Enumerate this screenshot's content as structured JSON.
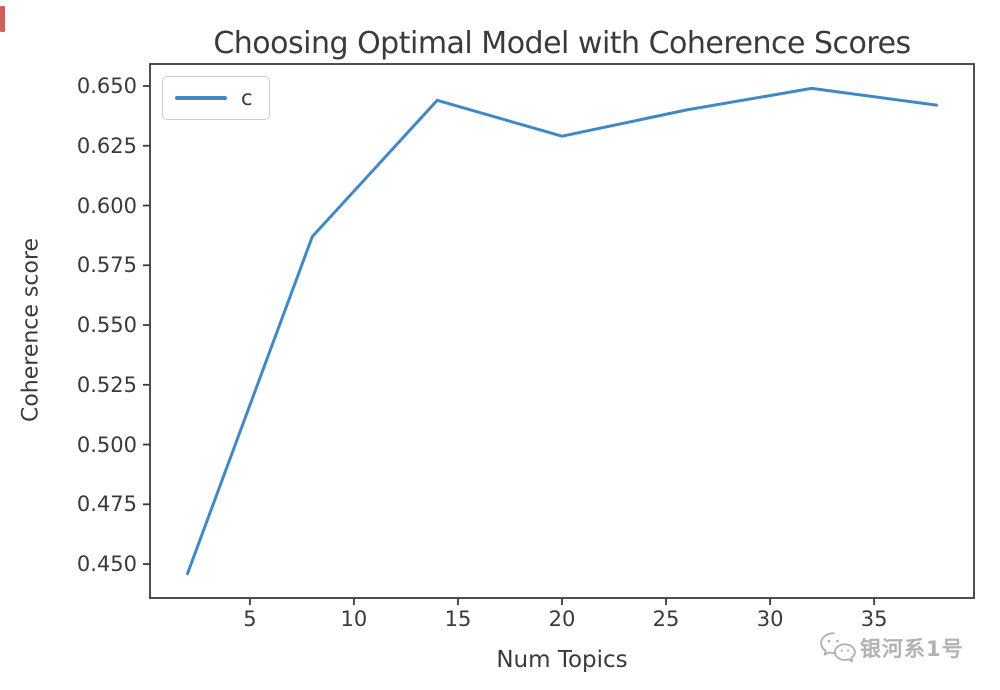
{
  "page": {
    "background": "#ffffff"
  },
  "artifact": {
    "description": "small red mark at top-left edge",
    "color": "#c4392e"
  },
  "watermark": {
    "icon": "wechat-chat-bubbles-icon",
    "text": "银河系1号",
    "color": "#b2b2b2"
  },
  "chart_data": {
    "type": "line",
    "title": "Choosing Optimal Model with Coherence Scores",
    "xlabel": "Num Topics",
    "ylabel": "Coherence score",
    "x": [
      2,
      8,
      14,
      20,
      26,
      32,
      38
    ],
    "series": [
      {
        "name": "c",
        "color": "#4288c4",
        "values": [
          0.446,
          0.587,
          0.644,
          0.629,
          0.64,
          0.649,
          0.642
        ]
      }
    ],
    "xlim": [
      0.2,
      39.8
    ],
    "ylim": [
      0.4358,
      0.6592
    ],
    "xticks": [
      5,
      10,
      15,
      20,
      25,
      30,
      35
    ],
    "xtick_labels": [
      "5",
      "10",
      "15",
      "20",
      "25",
      "30",
      "35"
    ],
    "yticks": [
      0.45,
      0.475,
      0.5,
      0.525,
      0.55,
      0.575,
      0.6,
      0.625,
      0.65
    ],
    "ytick_labels": [
      "0.450",
      "0.475",
      "0.500",
      "0.525",
      "0.550",
      "0.575",
      "0.600",
      "0.625",
      "0.650"
    ],
    "grid": false,
    "legend": {
      "position": "upper left",
      "entries": [
        "c"
      ]
    },
    "axis_color": "#3b3b3b",
    "text_color": "#3a3a3a"
  }
}
